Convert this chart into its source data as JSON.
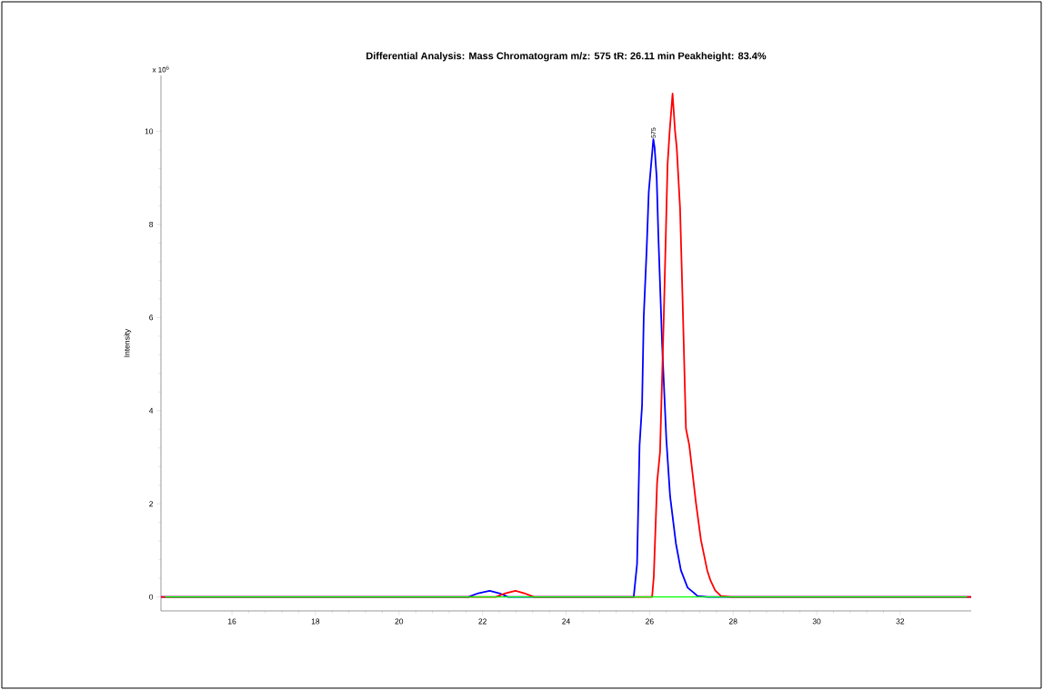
{
  "chart_data": {
    "type": "line",
    "title": "Differential Analysis: Mass Chromatogram m/z: 575 tR: 26.11 min Peakheight: 83.4%",
    "ylabel": "Intensity",
    "annotations": [
      {
        "text": "575",
        "x": 26.09,
        "y": 9.83
      },
      "x 10$^{6}$"
    ],
    "xlim": [
      14.3,
      33.7
    ],
    "ylim": [
      -0.3,
      11.2
    ],
    "xticks": [
      16,
      18,
      20,
      22,
      24,
      26,
      28,
      30,
      32
    ],
    "yticks": [
      0,
      2,
      4,
      6,
      8,
      10
    ],
    "series": [
      {
        "color": "#0000ff",
        "x": [
          14.3,
          21.66,
          21.9,
          22.17,
          22.4,
          22.61,
          25.62,
          25.7,
          25.76,
          25.82,
          25.86,
          25.93,
          25.98,
          26.09,
          26.12,
          26.17,
          26.21,
          26.3,
          26.4,
          26.49,
          26.63,
          26.75,
          26.91,
          27.15,
          27.39,
          33.7
        ],
        "values": [
          0,
          0,
          0.08,
          0.13,
          0.08,
          0,
          0,
          0.71,
          3.26,
          4.12,
          6.02,
          7.47,
          8.7,
          9.83,
          9.65,
          9.0,
          7.76,
          5.43,
          3.4,
          2.17,
          1.15,
          0.57,
          0.2,
          0.02,
          0,
          0
        ]
      },
      {
        "color": "#ff0000",
        "x": [
          14.3,
          22.32,
          22.55,
          22.79,
          23.0,
          23.23,
          26.06,
          26.1,
          26.18,
          26.25,
          26.34,
          26.43,
          26.48,
          26.55,
          26.61,
          26.65,
          26.73,
          26.79,
          26.87,
          26.95,
          27.11,
          27.23,
          27.38,
          27.46,
          27.57,
          27.71,
          27.95,
          33.7
        ],
        "values": [
          0,
          0,
          0.08,
          0.13,
          0.08,
          0,
          0,
          0.43,
          2.46,
          3.11,
          6.02,
          9.28,
          10.0,
          10.81,
          10.0,
          9.65,
          8.34,
          6.38,
          3.62,
          3.26,
          2.02,
          1.22,
          0.57,
          0.35,
          0.14,
          0.02,
          0,
          0
        ]
      },
      {
        "color": "#00ff00",
        "x": [
          14.4,
          33.6
        ],
        "values": [
          0,
          0
        ]
      }
    ]
  }
}
